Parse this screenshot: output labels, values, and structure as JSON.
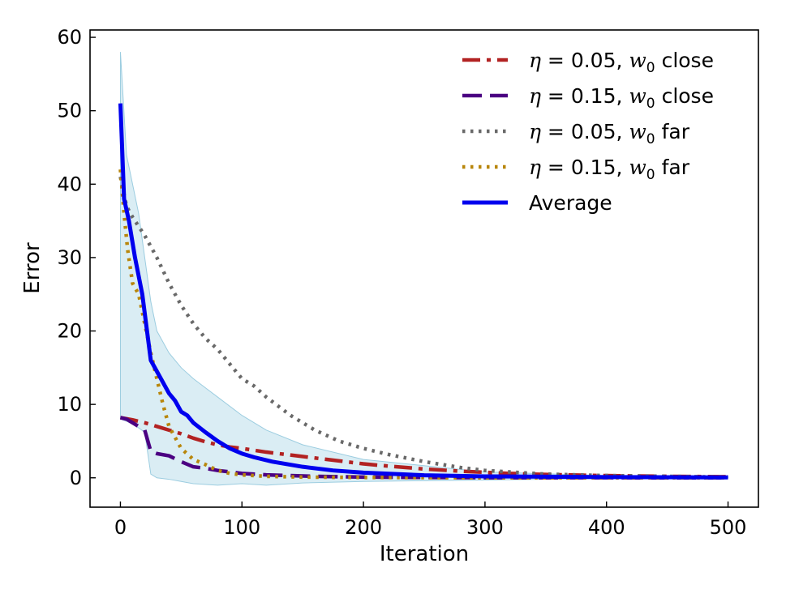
{
  "chart_data": {
    "type": "line",
    "title": "",
    "xlabel": "Iteration",
    "ylabel": "Error",
    "xlim": [
      -25,
      525
    ],
    "ylim": [
      -4,
      61
    ],
    "xticks": [
      0,
      100,
      200,
      300,
      400,
      500
    ],
    "yticks": [
      0,
      10,
      20,
      30,
      40,
      50,
      60
    ],
    "xtick_labels": [
      "0",
      "100",
      "200",
      "300",
      "400",
      "500"
    ],
    "ytick_labels": [
      "0",
      "10",
      "20",
      "30",
      "40",
      "50",
      "60"
    ],
    "grid": false,
    "legend_position": "top-right",
    "series": [
      {
        "name": "η = 0.05, w0 close",
        "label_math": "η",
        "label_eq": " = 0.05, ",
        "label_w": "w",
        "label_sub": "0",
        "label_rest": " close",
        "color": "#b22222",
        "style": "dashdot",
        "x": [
          0,
          10,
          20,
          30,
          40,
          50,
          60,
          70,
          80,
          90,
          100,
          120,
          140,
          160,
          180,
          200,
          220,
          250,
          280,
          300,
          320,
          350,
          400,
          450,
          500
        ],
        "y": [
          8.2,
          7.9,
          7.5,
          7.0,
          6.5,
          6.0,
          5.4,
          4.9,
          4.5,
          4.2,
          4.0,
          3.5,
          3.1,
          2.7,
          2.3,
          1.9,
          1.6,
          1.2,
          0.9,
          0.75,
          0.6,
          0.45,
          0.3,
          0.2,
          0.15
        ]
      },
      {
        "name": "η = 0.15, w0 close",
        "label_math": "η",
        "label_eq": " = 0.15, ",
        "label_w": "w",
        "label_sub": "0",
        "label_rest": " close",
        "color": "#4b0082",
        "style": "dashed",
        "x": [
          0,
          5,
          10,
          15,
          20,
          25,
          30,
          40,
          50,
          60,
          70,
          80,
          90,
          100,
          120,
          140,
          160,
          200,
          250,
          300,
          400,
          500
        ],
        "y": [
          8.2,
          8.0,
          7.5,
          7.0,
          6.5,
          3.6,
          3.3,
          3.0,
          2.2,
          1.5,
          1.3,
          1.0,
          0.8,
          0.6,
          0.4,
          0.3,
          0.2,
          0.1,
          0.05,
          0.02,
          0.01,
          0.0
        ]
      },
      {
        "name": "η = 0.05, w0 far",
        "label_math": "η",
        "label_eq": " = 0.05, ",
        "label_w": "w",
        "label_sub": "0",
        "label_rest": " far",
        "color": "#696969",
        "style": "dotted",
        "x": [
          0,
          5,
          10,
          20,
          30,
          40,
          50,
          60,
          70,
          80,
          90,
          100,
          110,
          120,
          140,
          160,
          180,
          200,
          220,
          250,
          280,
          300,
          350,
          400,
          450,
          500
        ],
        "y": [
          41.0,
          37.0,
          35.5,
          33.0,
          30.0,
          26.5,
          23.5,
          21.0,
          19.0,
          17.5,
          15.5,
          13.5,
          12.5,
          11.0,
          8.5,
          6.5,
          5.0,
          4.0,
          3.2,
          2.2,
          1.4,
          1.0,
          0.5,
          0.3,
          0.2,
          0.1
        ]
      },
      {
        "name": "η = 0.15, w0 far",
        "label_math": "η",
        "label_eq": " = 0.15, ",
        "label_w": "w",
        "label_sub": "0",
        "label_rest": " far",
        "color": "#b8860b",
        "style": "dotted",
        "x": [
          0,
          3,
          6,
          10,
          15,
          20,
          25,
          30,
          35,
          40,
          45,
          50,
          60,
          70,
          80,
          90,
          100,
          120,
          150,
          200,
          300,
          500
        ],
        "y": [
          42.0,
          36.0,
          31.0,
          26.5,
          25.0,
          21.0,
          17.0,
          13.5,
          10.0,
          7.0,
          5.5,
          4.0,
          2.5,
          1.8,
          1.0,
          0.6,
          0.4,
          0.2,
          0.1,
          0.05,
          0.0,
          0.0
        ]
      },
      {
        "name": "Average",
        "label_rest": "Average",
        "color": "#0000ee",
        "style": "solid",
        "x": [
          0,
          3,
          7,
          12,
          18,
          25,
          30,
          35,
          40,
          45,
          50,
          55,
          60,
          70,
          80,
          90,
          100,
          110,
          125,
          150,
          175,
          200,
          250,
          300,
          400,
          500
        ],
        "y": [
          51.0,
          38.0,
          35.0,
          30.0,
          25.0,
          16.0,
          14.5,
          13.0,
          11.5,
          10.5,
          9.0,
          8.5,
          7.5,
          6.2,
          5.0,
          4.0,
          3.3,
          2.8,
          2.2,
          1.5,
          1.0,
          0.7,
          0.35,
          0.2,
          0.1,
          0.05
        ]
      }
    ],
    "band": {
      "name": "spread",
      "color": "#add8e6",
      "x": [
        0,
        5,
        10,
        15,
        20,
        25,
        30,
        40,
        50,
        60,
        80,
        100,
        120,
        150,
        200,
        300,
        400,
        500
      ],
      "upper": [
        58.0,
        44.0,
        40.0,
        36.0,
        30.0,
        24.0,
        20.0,
        17.0,
        15.0,
        13.5,
        11.0,
        8.5,
        6.5,
        4.5,
        2.5,
        0.8,
        0.3,
        0.1
      ],
      "lower": [
        8.0,
        7.7,
        7.3,
        6.8,
        6.2,
        0.5,
        0.0,
        -0.2,
        -0.5,
        -0.8,
        -1.0,
        -0.8,
        -1.0,
        -0.7,
        -0.5,
        -0.3,
        -0.1,
        0.0
      ]
    }
  }
}
